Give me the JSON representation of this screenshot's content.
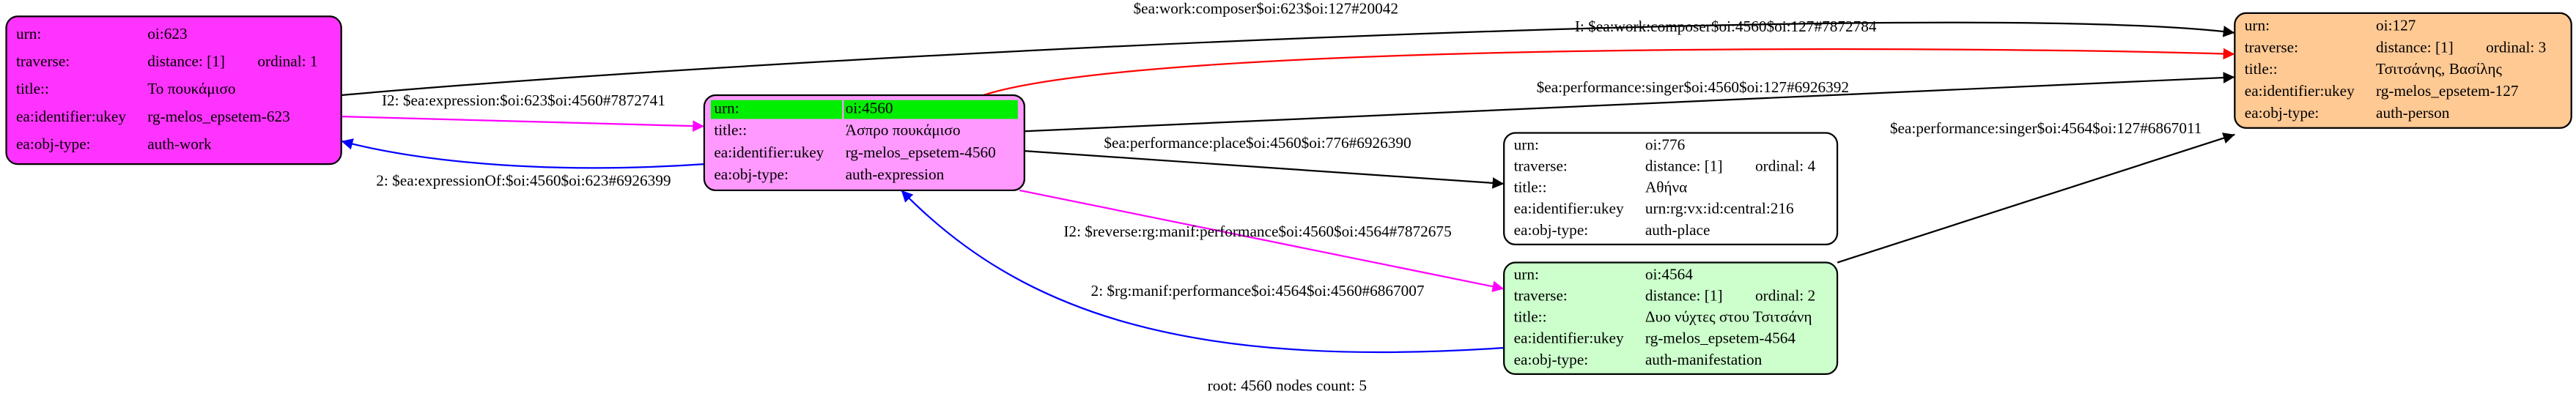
{
  "nodes": [
    {
      "rows": [
        [
          "urn:",
          "oi:623"
        ],
        [
          "traverse:",
          "distance: [1]",
          "ordinal: 1"
        ],
        [
          "title::",
          "Το πουκάμισο"
        ],
        [
          "ea:identifier:ukey",
          "rg-melos_epsetem-623"
        ],
        [
          "ea:obj-type:",
          "auth-work"
        ]
      ]
    },
    {
      "rows": [
        [
          "urn:",
          "oi:4560"
        ],
        [
          "title::",
          "Άσπρο πουκάμισο"
        ],
        [
          "ea:identifier:ukey",
          "rg-melos_epsetem-4560"
        ],
        [
          "ea:obj-type:",
          "auth-expression"
        ]
      ]
    },
    {
      "rows": [
        [
          "urn:",
          "oi:127"
        ],
        [
          "traverse:",
          "distance: [1]",
          "ordinal: 3"
        ],
        [
          "title::",
          "Τσιτσάνης, Βασίλης"
        ],
        [
          "ea:identifier:ukey",
          "rg-melos_epsetem-127"
        ],
        [
          "ea:obj-type:",
          "auth-person"
        ]
      ]
    },
    {
      "rows": [
        [
          "urn:",
          "oi:776"
        ],
        [
          "traverse:",
          "distance: [1]",
          "ordinal: 4"
        ],
        [
          "title::",
          "Αθήνα"
        ],
        [
          "ea:identifier:ukey",
          "urn:rg:vx:id:central:216"
        ],
        [
          "ea:obj-type:",
          "auth-place"
        ]
      ]
    },
    {
      "rows": [
        [
          "urn:",
          "oi:4564"
        ],
        [
          "traverse:",
          "distance: [1]",
          "ordinal: 2"
        ],
        [
          "title::",
          "Δυο νύχτες στου Τσιτσάνη"
        ],
        [
          "ea:identifier:ukey",
          "rg-melos_epsetem-4564"
        ],
        [
          "ea:obj-type:",
          "auth-manifestation"
        ]
      ]
    }
  ],
  "edges": [
    {
      "label": "$ea:work:composer$oi:623$oi:127#20042"
    },
    {
      "label": "I: $ea:work:composer$oi:4560$oi:127#7872784"
    },
    {
      "label": "$ea:performance:singer$oi:4560$oi:127#6926392"
    },
    {
      "label": "$ea:performance:singer$oi:4564$oi:127#6867011"
    },
    {
      "label": "I2: $ea:expression:$oi:623$oi:4560#7872741"
    },
    {
      "label": "2: $ea:expressionOf:$oi:4560$oi:623#6926399"
    },
    {
      "label": "$ea:performance:place$oi:4560$oi:776#6926390"
    },
    {
      "label": "I2: $reverse:rg:manif:performance$oi:4560$oi:4564#7872675"
    },
    {
      "label": "2: $rg:manif:performance$oi:4564$oi:4560#6867007"
    }
  ],
  "footer": "root: 4560 nodes count: 5"
}
